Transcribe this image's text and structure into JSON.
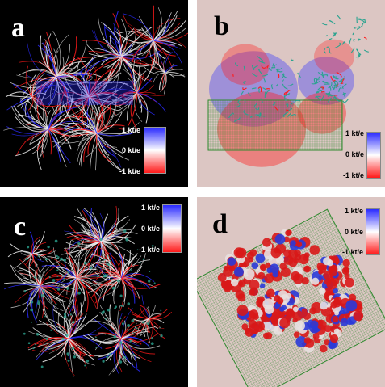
{
  "panels": [
    {
      "id": "a",
      "letter": "a",
      "background": "#000000",
      "text_color": "#ffffff",
      "colorbar": {
        "max_label": "1 kt/e",
        "mid_label": "0 kt/e",
        "min_label": "-1 kt/e"
      }
    },
    {
      "id": "b",
      "letter": "b",
      "background": "#dcc6c3",
      "text_color": "#000000",
      "colorbar": {
        "max_label": "1 kt/e",
        "mid_label": "0 kt/e",
        "min_label": "-1 kt/e"
      }
    },
    {
      "id": "c",
      "letter": "c",
      "background": "#000000",
      "text_color": "#ffffff",
      "colorbar": {
        "max_label": "1 kt/e",
        "mid_label": "0 kt/e",
        "min_label": "-1 kt/e"
      }
    },
    {
      "id": "d",
      "letter": "d",
      "background": "#dcc6c3",
      "text_color": "#000000",
      "colorbar": {
        "max_label": "1 kt/e",
        "mid_label": "0 kt/e",
        "min_label": "-1 kt/e"
      }
    }
  ],
  "colors": {
    "positive": "#2a2aff",
    "neutral": "#ffffff",
    "negative": "#ff1a1a",
    "grid": "#2f8a2f",
    "protein": "#2aa38f"
  }
}
